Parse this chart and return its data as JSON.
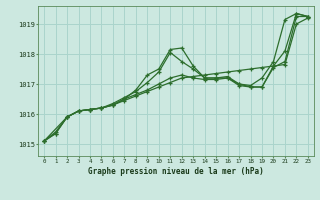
{
  "background_color": "#cce8e0",
  "grid_color": "#aad4cc",
  "line_color": "#2d6e2d",
  "title": "Graphe pression niveau de la mer (hPa)",
  "xlim": [
    -0.5,
    23.5
  ],
  "ylim": [
    1014.6,
    1019.6
  ],
  "yticks": [
    1015,
    1016,
    1017,
    1018,
    1019
  ],
  "xticks": [
    0,
    1,
    2,
    3,
    4,
    5,
    6,
    7,
    8,
    9,
    10,
    11,
    12,
    13,
    14,
    15,
    16,
    17,
    18,
    19,
    20,
    21,
    22,
    23
  ],
  "series": [
    {
      "x": [
        0,
        1,
        2,
        3,
        4,
        5,
        6,
        7,
        8,
        9,
        10,
        11,
        12,
        13,
        14,
        15,
        16,
        17,
        18,
        19,
        20,
        21,
        22,
        23
      ],
      "y": [
        1015.1,
        1015.4,
        1015.9,
        1016.1,
        1016.15,
        1016.2,
        1016.3,
        1016.5,
        1016.8,
        1017.3,
        1017.5,
        1018.15,
        1018.2,
        1017.6,
        1017.2,
        1017.2,
        1017.25,
        1017.0,
        1016.9,
        1016.9,
        1017.6,
        1018.1,
        1019.35,
        1019.25
      ]
    },
    {
      "x": [
        0,
        1,
        2,
        3,
        4,
        5,
        6,
        7,
        8,
        9,
        10,
        11,
        12,
        13,
        14,
        15,
        16,
        17,
        18,
        19,
        20,
        21,
        22,
        23
      ],
      "y": [
        1015.1,
        1015.35,
        1015.9,
        1016.1,
        1016.15,
        1016.2,
        1016.35,
        1016.55,
        1016.75,
        1017.05,
        1017.4,
        1018.05,
        1017.75,
        1017.5,
        1017.2,
        1017.2,
        1017.2,
        1017.0,
        1016.95,
        1017.2,
        1017.75,
        1019.15,
        1019.35,
        1019.25
      ]
    },
    {
      "x": [
        0,
        2,
        3,
        4,
        5,
        6,
        7,
        8,
        9,
        10,
        11,
        12,
        13,
        14,
        15,
        16,
        17,
        18,
        19,
        20,
        21,
        22,
        23
      ],
      "y": [
        1015.1,
        1015.9,
        1016.1,
        1016.15,
        1016.2,
        1016.3,
        1016.5,
        1016.65,
        1016.8,
        1017.0,
        1017.2,
        1017.3,
        1017.2,
        1017.15,
        1017.15,
        1017.2,
        1016.95,
        1016.9,
        1016.9,
        1017.55,
        1017.75,
        1019.25,
        1019.25
      ]
    },
    {
      "x": [
        0,
        1,
        2,
        3,
        4,
        5,
        6,
        7,
        8,
        9,
        10,
        11,
        12,
        13,
        14,
        15,
        16,
        17,
        18,
        19,
        20,
        21,
        22,
        23
      ],
      "y": [
        1015.1,
        1015.35,
        1015.9,
        1016.1,
        1016.15,
        1016.2,
        1016.3,
        1016.45,
        1016.6,
        1016.75,
        1016.9,
        1017.05,
        1017.2,
        1017.25,
        1017.3,
        1017.35,
        1017.4,
        1017.45,
        1017.5,
        1017.55,
        1017.6,
        1017.65,
        1019.0,
        1019.2
      ]
    }
  ]
}
